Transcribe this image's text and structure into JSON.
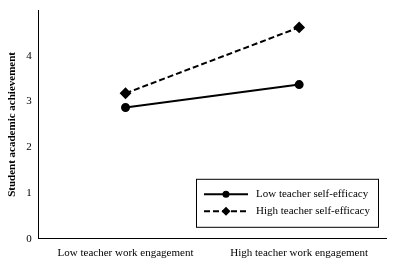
{
  "chart_data": {
    "type": "line",
    "y_label": "Student academic achievement",
    "categories": [
      "Low teacher work engagement",
      "High teacher work engagement"
    ],
    "series": [
      {
        "name": "Low teacher self-efficacy",
        "color": "#000000",
        "marker": "circle",
        "line_style": "solid",
        "values": [
          2.87,
          3.37
        ]
      },
      {
        "name": "High teacher self-efficacy",
        "color": "#000000",
        "marker": "diamond",
        "line_style": "dashed",
        "values": [
          3.18,
          4.62
        ]
      }
    ],
    "ylim": [
      0,
      5
    ],
    "yticks": [
      0,
      1,
      2,
      3,
      4
    ],
    "grid": false,
    "legend": "lower right"
  }
}
